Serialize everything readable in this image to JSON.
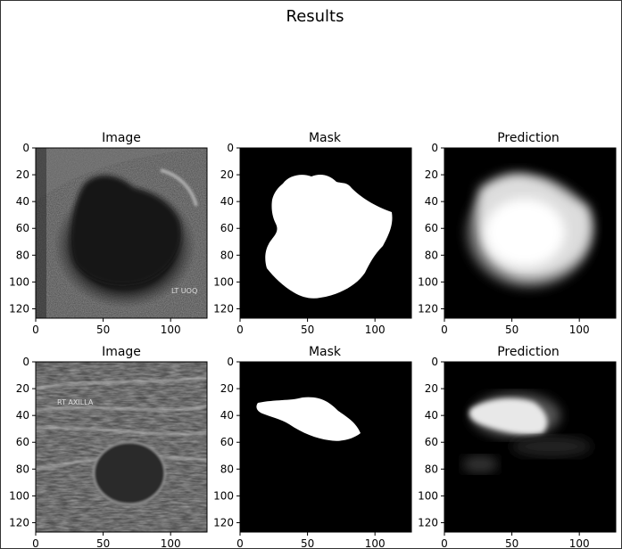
{
  "figure": {
    "title": "Results"
  },
  "panels": [
    {
      "row": 0,
      "col": 0,
      "title": "Image",
      "kind": "ultrasound-image"
    },
    {
      "row": 0,
      "col": 1,
      "title": "Mask",
      "kind": "mask"
    },
    {
      "row": 0,
      "col": 2,
      "title": "Prediction",
      "kind": "prediction"
    },
    {
      "row": 1,
      "col": 0,
      "title": "Image",
      "kind": "ultrasound-image"
    },
    {
      "row": 1,
      "col": 1,
      "title": "Mask",
      "kind": "mask"
    },
    {
      "row": 1,
      "col": 2,
      "title": "Prediction",
      "kind": "prediction"
    }
  ],
  "axes": {
    "x_ticks": [
      "0",
      "50",
      "100"
    ],
    "y_ticks": [
      "0",
      "20",
      "40",
      "60",
      "80",
      "100",
      "120"
    ],
    "range": [
      0,
      127
    ]
  },
  "overlay_text": {
    "image_row0": "LT UOQ",
    "image_row1": "RT AXILLA"
  },
  "colors": {
    "background": "#ffffff",
    "mask_fg": "#ffffff",
    "mask_bg": "#000000"
  }
}
